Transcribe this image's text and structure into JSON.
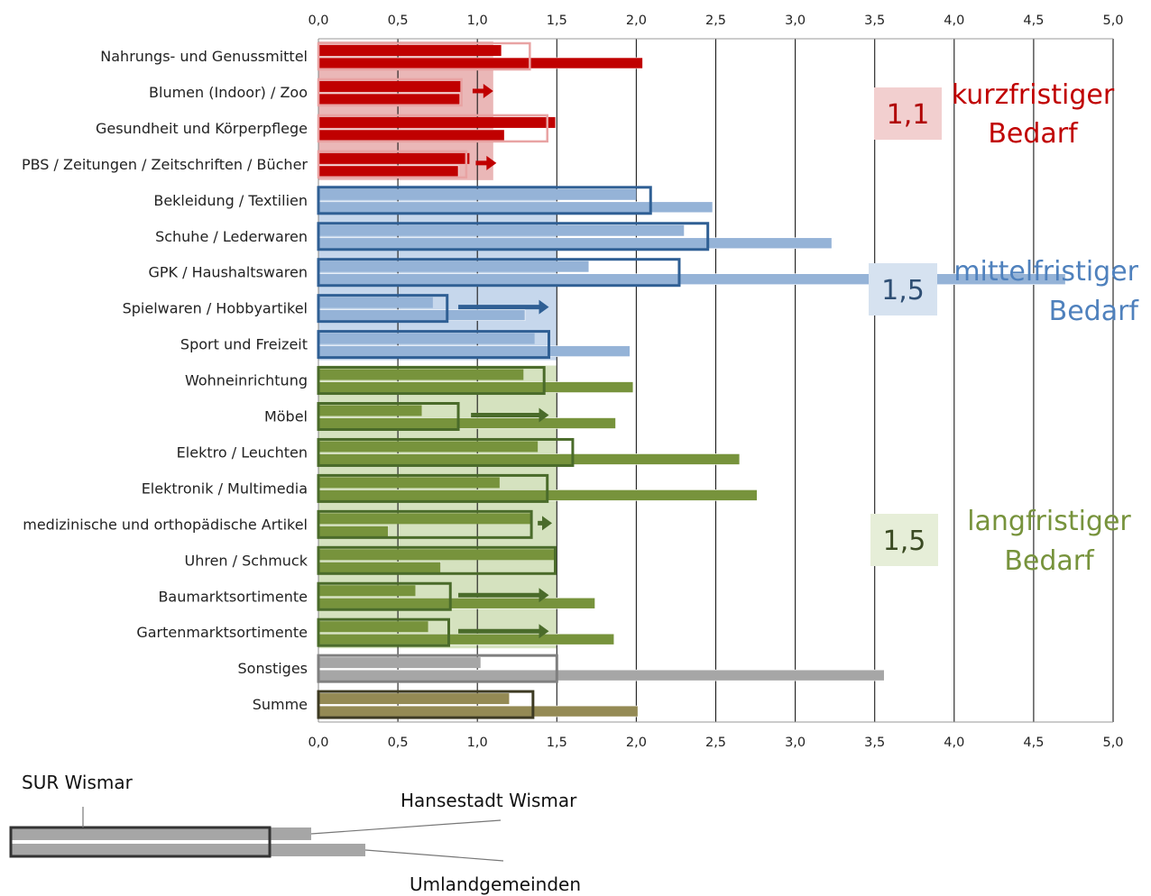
{
  "chart_data": {
    "type": "bar",
    "orientation": "horizontal",
    "xlim": [
      0,
      5
    ],
    "x_ticks": [
      "0,0",
      "0,5",
      "1,0",
      "1,5",
      "2,0",
      "2,5",
      "3,0",
      "3,5",
      "4,0",
      "4,5",
      "5,0"
    ],
    "grid": true,
    "series_labels": {
      "outline": "SUR Wismar",
      "upper": "Hansestadt Wismar",
      "lower": "Umlandgemeinden"
    },
    "categories": [
      "Nahrungs- und Genussmittel",
      "Blumen (Indoor) / Zoo",
      "Gesundheit und Körperpflege",
      "PBS / Zeitungen / Zeitschriften / Bücher",
      "Bekleidung / Textilien",
      "Schuhe / Lederwaren",
      "GPK / Haushaltswaren",
      "Spielwaren / Hobbyartikel",
      "Sport und Freizeit",
      "Wohneinrichtung",
      "Möbel",
      "Elektro / Leuchten",
      "Elektronik / Multimedia",
      "medizinische und orthopädische Artikel",
      "Uhren / Schmuck",
      "Baumarktsortimente",
      "Gartenmarktsortimente",
      "Sonstiges",
      "Summe"
    ],
    "group_of_category": [
      "short",
      "short",
      "short",
      "short",
      "mid",
      "mid",
      "mid",
      "mid",
      "mid",
      "long",
      "long",
      "long",
      "long",
      "long",
      "long",
      "long",
      "long",
      "other",
      "sum"
    ],
    "sur_wismar": [
      1.33,
      0.9,
      1.44,
      0.93,
      2.09,
      2.45,
      2.27,
      0.81,
      1.45,
      1.42,
      0.88,
      1.6,
      1.44,
      1.34,
      1.49,
      0.83,
      0.82,
      1.5,
      1.35
    ],
    "hansestadt_wismar": [
      1.15,
      0.9,
      1.49,
      0.95,
      2.0,
      2.3,
      1.7,
      0.72,
      1.36,
      1.29,
      0.65,
      1.38,
      1.14,
      1.34,
      1.49,
      0.61,
      0.69,
      1.02,
      1.2
    ],
    "umlandgemeinden": [
      2.04,
      0.89,
      1.17,
      0.88,
      2.48,
      3.23,
      4.7,
      1.3,
      1.96,
      1.98,
      1.87,
      2.65,
      2.76,
      0.44,
      0.77,
      1.74,
      1.86,
      3.56,
      2.01
    ],
    "arrows": [
      {
        "category_index": 1,
        "x_from": 0.97,
        "x_to": 1.1
      },
      {
        "category_index": 3,
        "x_from": 0.99,
        "x_to": 1.12
      },
      {
        "category_index": 7,
        "x_from": 0.88,
        "x_to": 1.45
      },
      {
        "category_index": 10,
        "x_from": 0.96,
        "x_to": 1.45
      },
      {
        "category_index": 13,
        "x_from": 1.38,
        "x_to": 1.47
      },
      {
        "category_index": 15,
        "x_from": 0.88,
        "x_to": 1.45
      },
      {
        "category_index": 16,
        "x_from": 0.88,
        "x_to": 1.45
      }
    ],
    "groups": [
      {
        "id": "short",
        "label_line1": "kurzfristiger",
        "label_line2": "Bedarf",
        "average": "1,1",
        "average_value": 1.1,
        "color": "#c00000",
        "fill_color": "#c00000",
        "band_color": "#eab7b7",
        "avg_box_color": "#f2cfcf"
      },
      {
        "id": "mid",
        "label_line1": "mittelfristiger",
        "label_line2": "Bedarf",
        "average": "1,5",
        "average_value": 1.5,
        "color": "#2f5f94",
        "fill_color": "#95b3d7",
        "band_color": "#c6d7ec",
        "avg_box_color": "#d6e2f0"
      },
      {
        "id": "long",
        "label_line1": "langfristiger",
        "label_line2": "Bedarf",
        "average": "1,5",
        "average_value": 1.5,
        "color": "#4a6b2a",
        "fill_color": "#77933c",
        "band_color": "#d5e2bf",
        "avg_box_color": "#e6eed8"
      },
      {
        "id": "other",
        "color": "#7f7f7f",
        "fill_color": "#a6a6a6"
      },
      {
        "id": "sum",
        "color": "#3d3a22",
        "fill_color": "#948a54"
      }
    ]
  }
}
